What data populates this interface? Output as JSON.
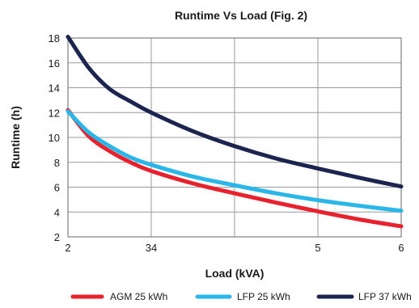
{
  "chart_data": {
    "type": "line",
    "title": "Runtime Vs Load (Fig. 2)",
    "xlabel": "Load (kVA)",
    "ylabel": "Runtime (h)",
    "x_tick_labels": [
      "2",
      "34",
      "",
      "5",
      "6"
    ],
    "x_tick_positions": [
      0,
      1,
      2,
      3,
      4
    ],
    "xlim": [
      0,
      4
    ],
    "ylim": [
      2,
      18
    ],
    "y_ticks": [
      2,
      4,
      6,
      8,
      10,
      12,
      14,
      16,
      18
    ],
    "grid": true,
    "legend_position": "bottom",
    "series": [
      {
        "name": "AGM 25 kWh",
        "color": "#e8212e",
        "x": [
          0,
          0.25,
          0.5,
          0.75,
          1.0,
          1.5,
          2.0,
          2.5,
          3.0,
          3.5,
          4.0
        ],
        "y": [
          12.2,
          10.1,
          8.9,
          8.0,
          7.3,
          6.3,
          5.5,
          4.75,
          4.05,
          3.4,
          2.85
        ]
      },
      {
        "name": "LFP 25 kWh",
        "color": "#29b6e8",
        "x": [
          0,
          0.25,
          0.5,
          0.75,
          1.0,
          1.5,
          2.0,
          2.5,
          3.0,
          3.5,
          4.0
        ],
        "y": [
          12.1,
          10.4,
          9.3,
          8.4,
          7.8,
          6.85,
          6.15,
          5.5,
          4.95,
          4.5,
          4.1
        ]
      },
      {
        "name": "LFP 37 kWh",
        "color": "#1c2550",
        "x": [
          0,
          0.25,
          0.5,
          0.75,
          1.0,
          1.5,
          2.0,
          2.5,
          3.0,
          3.5,
          4.0
        ],
        "y": [
          18.1,
          15.6,
          13.9,
          12.9,
          12.0,
          10.5,
          9.3,
          8.3,
          7.5,
          6.75,
          6.05
        ]
      }
    ]
  }
}
